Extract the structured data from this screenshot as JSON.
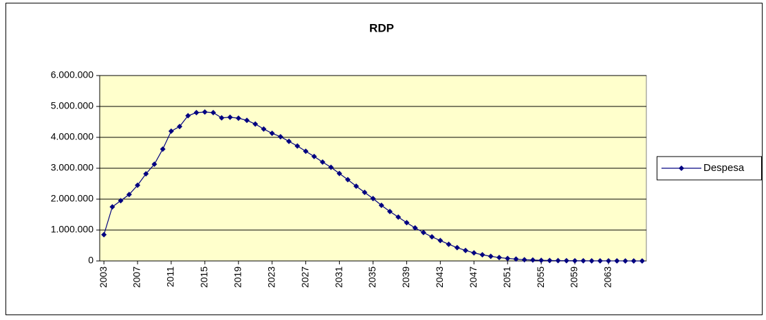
{
  "chart_data": {
    "type": "line",
    "title": "RDP",
    "x": [
      2003,
      2004,
      2005,
      2006,
      2007,
      2008,
      2009,
      2010,
      2011,
      2012,
      2013,
      2014,
      2015,
      2016,
      2017,
      2018,
      2019,
      2020,
      2021,
      2022,
      2023,
      2024,
      2025,
      2026,
      2027,
      2028,
      2029,
      2030,
      2031,
      2032,
      2033,
      2034,
      2035,
      2036,
      2037,
      2038,
      2039,
      2040,
      2041,
      2042,
      2043,
      2044,
      2045,
      2046,
      2047,
      2048,
      2049,
      2050,
      2051,
      2052,
      2053,
      2054,
      2055,
      2056,
      2057,
      2058,
      2059,
      2060,
      2061,
      2062,
      2063,
      2064,
      2065,
      2066,
      2067
    ],
    "series": [
      {
        "name": "Despesa",
        "color": "#000080",
        "values": [
          850000,
          1750000,
          1950000,
          2150000,
          2450000,
          2820000,
          3130000,
          3620000,
          4200000,
          4350000,
          4700000,
          4800000,
          4820000,
          4800000,
          4630000,
          4650000,
          4620000,
          4550000,
          4430000,
          4270000,
          4130000,
          4020000,
          3870000,
          3720000,
          3550000,
          3380000,
          3200000,
          3030000,
          2830000,
          2630000,
          2420000,
          2220000,
          2020000,
          1800000,
          1600000,
          1420000,
          1240000,
          1070000,
          920000,
          780000,
          660000,
          540000,
          430000,
          340000,
          260000,
          200000,
          150000,
          110000,
          80000,
          60000,
          40000,
          30000,
          20000,
          15000,
          10000,
          8000,
          6000,
          5000,
          4000,
          3000,
          2000,
          1500,
          1000,
          500,
          0
        ]
      }
    ],
    "xlim": [
      2002.5,
      2067.5
    ],
    "xticks": [
      2003,
      2007,
      2011,
      2015,
      2019,
      2023,
      2027,
      2031,
      2035,
      2039,
      2043,
      2047,
      2051,
      2055,
      2059,
      2063
    ],
    "ylim": [
      0,
      6000000
    ],
    "yticks": [
      0,
      {
        "value": 1000000,
        "label": "1.000.000"
      },
      {
        "value": 2000000,
        "label": "2.000.000"
      },
      {
        "value": 3000000,
        "label": "3.000.000"
      },
      {
        "value": 4000000,
        "label": "4.000.000"
      },
      {
        "value": 5000000,
        "label": "5.000.000"
      },
      {
        "value": 6000000,
        "label": "6.000.000"
      }
    ],
    "grid": true,
    "legend": "right",
    "plot_background": "#ffffcc"
  }
}
